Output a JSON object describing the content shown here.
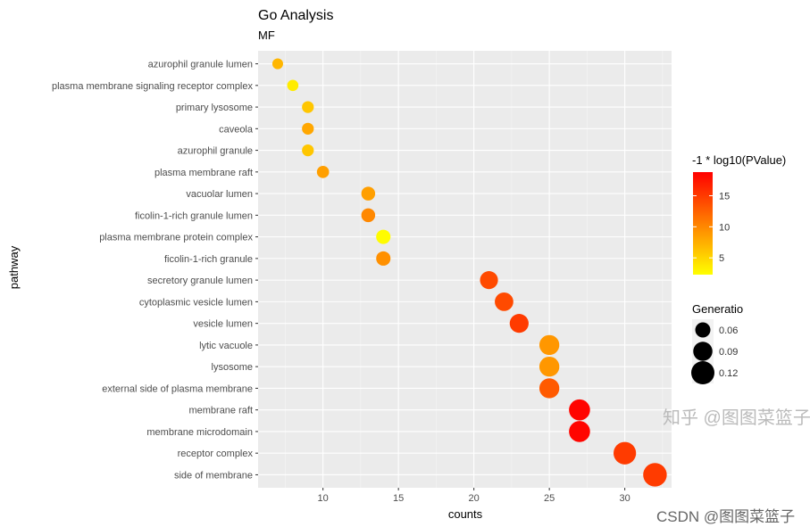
{
  "chart_data": {
    "type": "scatter",
    "title": "Go Analysis",
    "subtitle": "MF",
    "xlabel": "counts",
    "ylabel": "pathway",
    "xlim": [
      5.7,
      33.1
    ],
    "xticks": [
      10,
      15,
      20,
      25,
      30
    ],
    "grid": true,
    "categories": [
      "azurophil granule lumen",
      "plasma membrane signaling receptor complex",
      "primary lysosome",
      "caveola",
      "azurophil granule",
      "plasma membrane raft",
      "vacuolar lumen",
      "ficolin-1-rich granule lumen",
      "plasma membrane protein complex",
      "ficolin-1-rich granule",
      "secretory granule lumen",
      "cytoplasmic vesicle lumen",
      "vesicle lumen",
      "lytic vacuole",
      "lysosome",
      "external side of plasma membrane",
      "membrane raft",
      "membrane microdomain",
      "receptor complex",
      "side of membrane"
    ],
    "counts": [
      7,
      8,
      9,
      9,
      9,
      10,
      13,
      13,
      14,
      14,
      21,
      22,
      23,
      25,
      25,
      25,
      27,
      27,
      30,
      32
    ],
    "neg_log10_pvalue": [
      7,
      3.5,
      6,
      8,
      6,
      8.5,
      8.5,
      10,
      2.5,
      9.5,
      14,
      14,
      15,
      9,
      9,
      13,
      18.5,
      18.5,
      15,
      15
    ],
    "gene_ratio": [
      0.027,
      0.031,
      0.035,
      0.035,
      0.035,
      0.038,
      0.05,
      0.05,
      0.054,
      0.054,
      0.081,
      0.085,
      0.088,
      0.096,
      0.096,
      0.096,
      0.104,
      0.104,
      0.115,
      0.123
    ],
    "color_legend": {
      "title": "-1 * log10(PValue)",
      "ticks": [
        5,
        10,
        15
      ],
      "range": [
        2.3,
        18.8
      ],
      "low_color": "#FFFF00",
      "high_color": "#FF0000"
    },
    "size_legend": {
      "title": "Generatio",
      "values": [
        0.06,
        0.09,
        0.12
      ],
      "labels": [
        "0.06",
        "0.09",
        "0.12"
      ]
    },
    "legend_position": "right"
  },
  "watermarks": [
    "知乎 @图图菜篮子",
    "CSDN @图图菜篮子"
  ]
}
